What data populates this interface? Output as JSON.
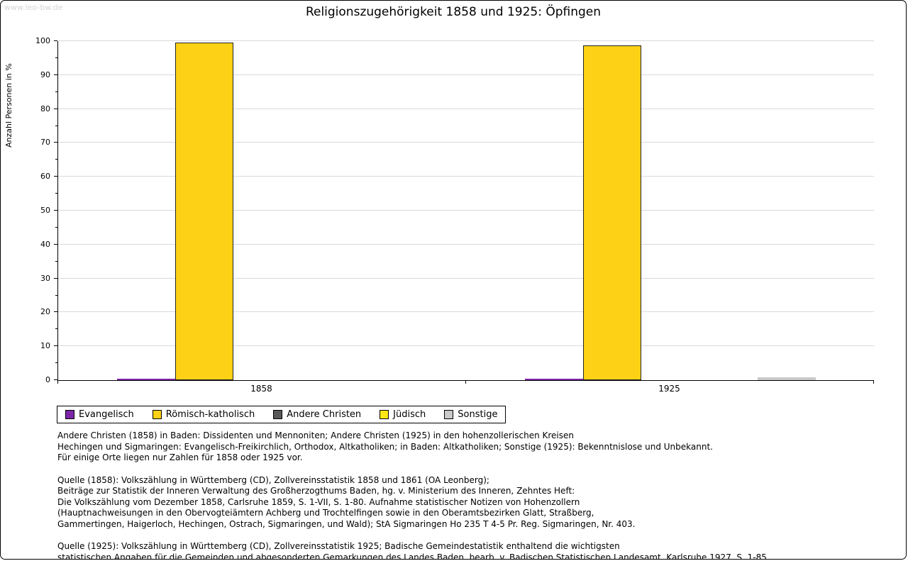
{
  "watermark": "www.leo-bw.de",
  "title": "Religionszugehörigkeit 1858 und 1925: Öpfingen",
  "chart_data": {
    "type": "bar",
    "title": "Religionszugehörigkeit 1858 und 1925: Öpfingen",
    "xlabel": "",
    "ylabel": "Anzahl Personen in %",
    "ylim": [
      0,
      100
    ],
    "ytick_step": 10,
    "ytick_minor_step": 5,
    "grid": true,
    "legend_position": "bottom-left",
    "categories": [
      "1858",
      "1925"
    ],
    "series": [
      {
        "name": "Evangelisch",
        "color": "#7d26a8",
        "values": [
          0.4,
          0.5
        ]
      },
      {
        "name": "Römisch-katholisch",
        "color": "#fcd116",
        "values": [
          99.6,
          98.8
        ]
      },
      {
        "name": "Andere Christen",
        "color": "#595959",
        "values": [
          0,
          0
        ]
      },
      {
        "name": "Jüdisch",
        "color": "#ffe616",
        "values": [
          0,
          0
        ]
      },
      {
        "name": "Sonstige",
        "color": "#c9c9c9",
        "values": [
          0,
          0.8
        ]
      }
    ]
  },
  "notes": {
    "note1": "Andere Christen (1858) in Baden: Dissidenten und Mennoniten; Andere Christen (1925) in den hohenzollerischen Kreisen\nHechingen und Sigmaringen: Evangelisch-Freikirchlich, Orthodox, Altkatholiken; in Baden: Altkatholiken; Sonstige (1925): Bekenntnislose und Unbekannt.\nFür einige Orte liegen nur Zahlen für 1858 oder 1925 vor.",
    "quelle1858": "Quelle (1858): Volkszählung in Württemberg (CD), Zollvereinsstatistik 1858 und 1861 (OA Leonberg);\nBeiträge zur Statistik der Inneren Verwaltung des Großherzogthums Baden, hg. v. Ministerium des Inneren, Zehntes Heft:\nDie Volkszählung vom Dezember 1858, Carlsruhe 1859, S. 1-VII, S. 1-80. Aufnahme statistischer Notizen von Hohenzollern\n(Hauptnachweisungen in den Obervogteiämtern Achberg und Trochtelfingen sowie in den Oberamtsbezirken Glatt, Straßberg,\nGammertingen, Haigerloch, Hechingen, Ostrach, Sigmaringen, und Wald); StA Sigmaringen Ho 235 T 4-5 Pr. Reg. Sigmaringen, Nr. 403.",
    "quelle1925": "Quelle (1925): Volkszählung in Württemberg (CD), Zollvereinsstatistik 1925; Badische Gemeindestatistik enthaltend die wichtigsten\nstatistischen Angaben für die Gemeinden und abgesonderten Gemarkungen des Landes Baden, bearb. v. Badischen Statistischen Landesamt, Karlsruhe 1927, S. 1-85."
  }
}
